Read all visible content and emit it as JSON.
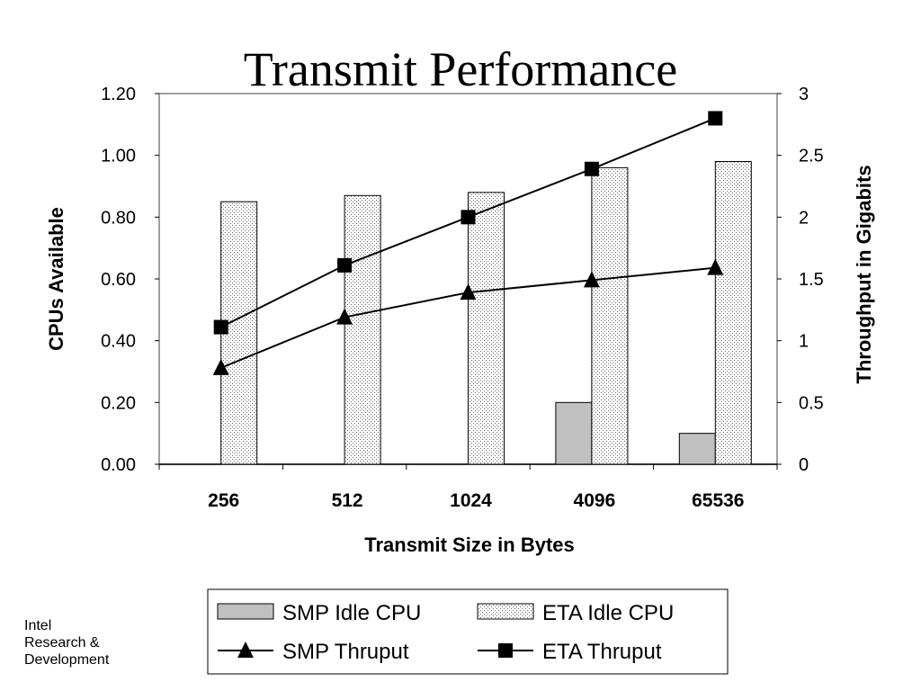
{
  "footer": {
    "lines": [
      "Intel",
      "Research &",
      "Development"
    ]
  },
  "chart_data": {
    "type": "bar",
    "title": "Transmit Performance",
    "xlabel": "Transmit Size in Bytes",
    "ylabel": "CPUs Available",
    "y2label": "Throughput in Gigabits",
    "categories": [
      "256",
      "512",
      "1024",
      "4096",
      "65536"
    ],
    "ylim": [
      0,
      1.2
    ],
    "y2lim": [
      0,
      3
    ],
    "yticks": [
      "0.00",
      "0.20",
      "0.40",
      "0.60",
      "0.80",
      "1.00",
      "1.20"
    ],
    "y2ticks": [
      "0",
      "0.5",
      "1",
      "1.5",
      "2",
      "2.5",
      "3"
    ],
    "grid": false,
    "legend_position": "bottom",
    "series": [
      {
        "name": "SMP Idle CPU",
        "kind": "bar",
        "axis": "left",
        "color": "#c0c0c0",
        "values": [
          0,
          0,
          0,
          0.2,
          0.1
        ]
      },
      {
        "name": "ETA Idle CPU",
        "kind": "bar",
        "axis": "left",
        "color": "#ffffff",
        "pattern": "dotted",
        "values": [
          0.85,
          0.87,
          0.88,
          0.96,
          0.98
        ]
      },
      {
        "name": "SMP Thruput",
        "kind": "line",
        "axis": "right",
        "marker": "triangle",
        "color": "#000000",
        "values": [
          0.78,
          1.19,
          1.39,
          1.49,
          1.59
        ]
      },
      {
        "name": "ETA Thruput",
        "kind": "line",
        "axis": "right",
        "marker": "square",
        "color": "#000000",
        "values": [
          1.11,
          1.61,
          2.0,
          2.39,
          2.8
        ]
      }
    ]
  }
}
